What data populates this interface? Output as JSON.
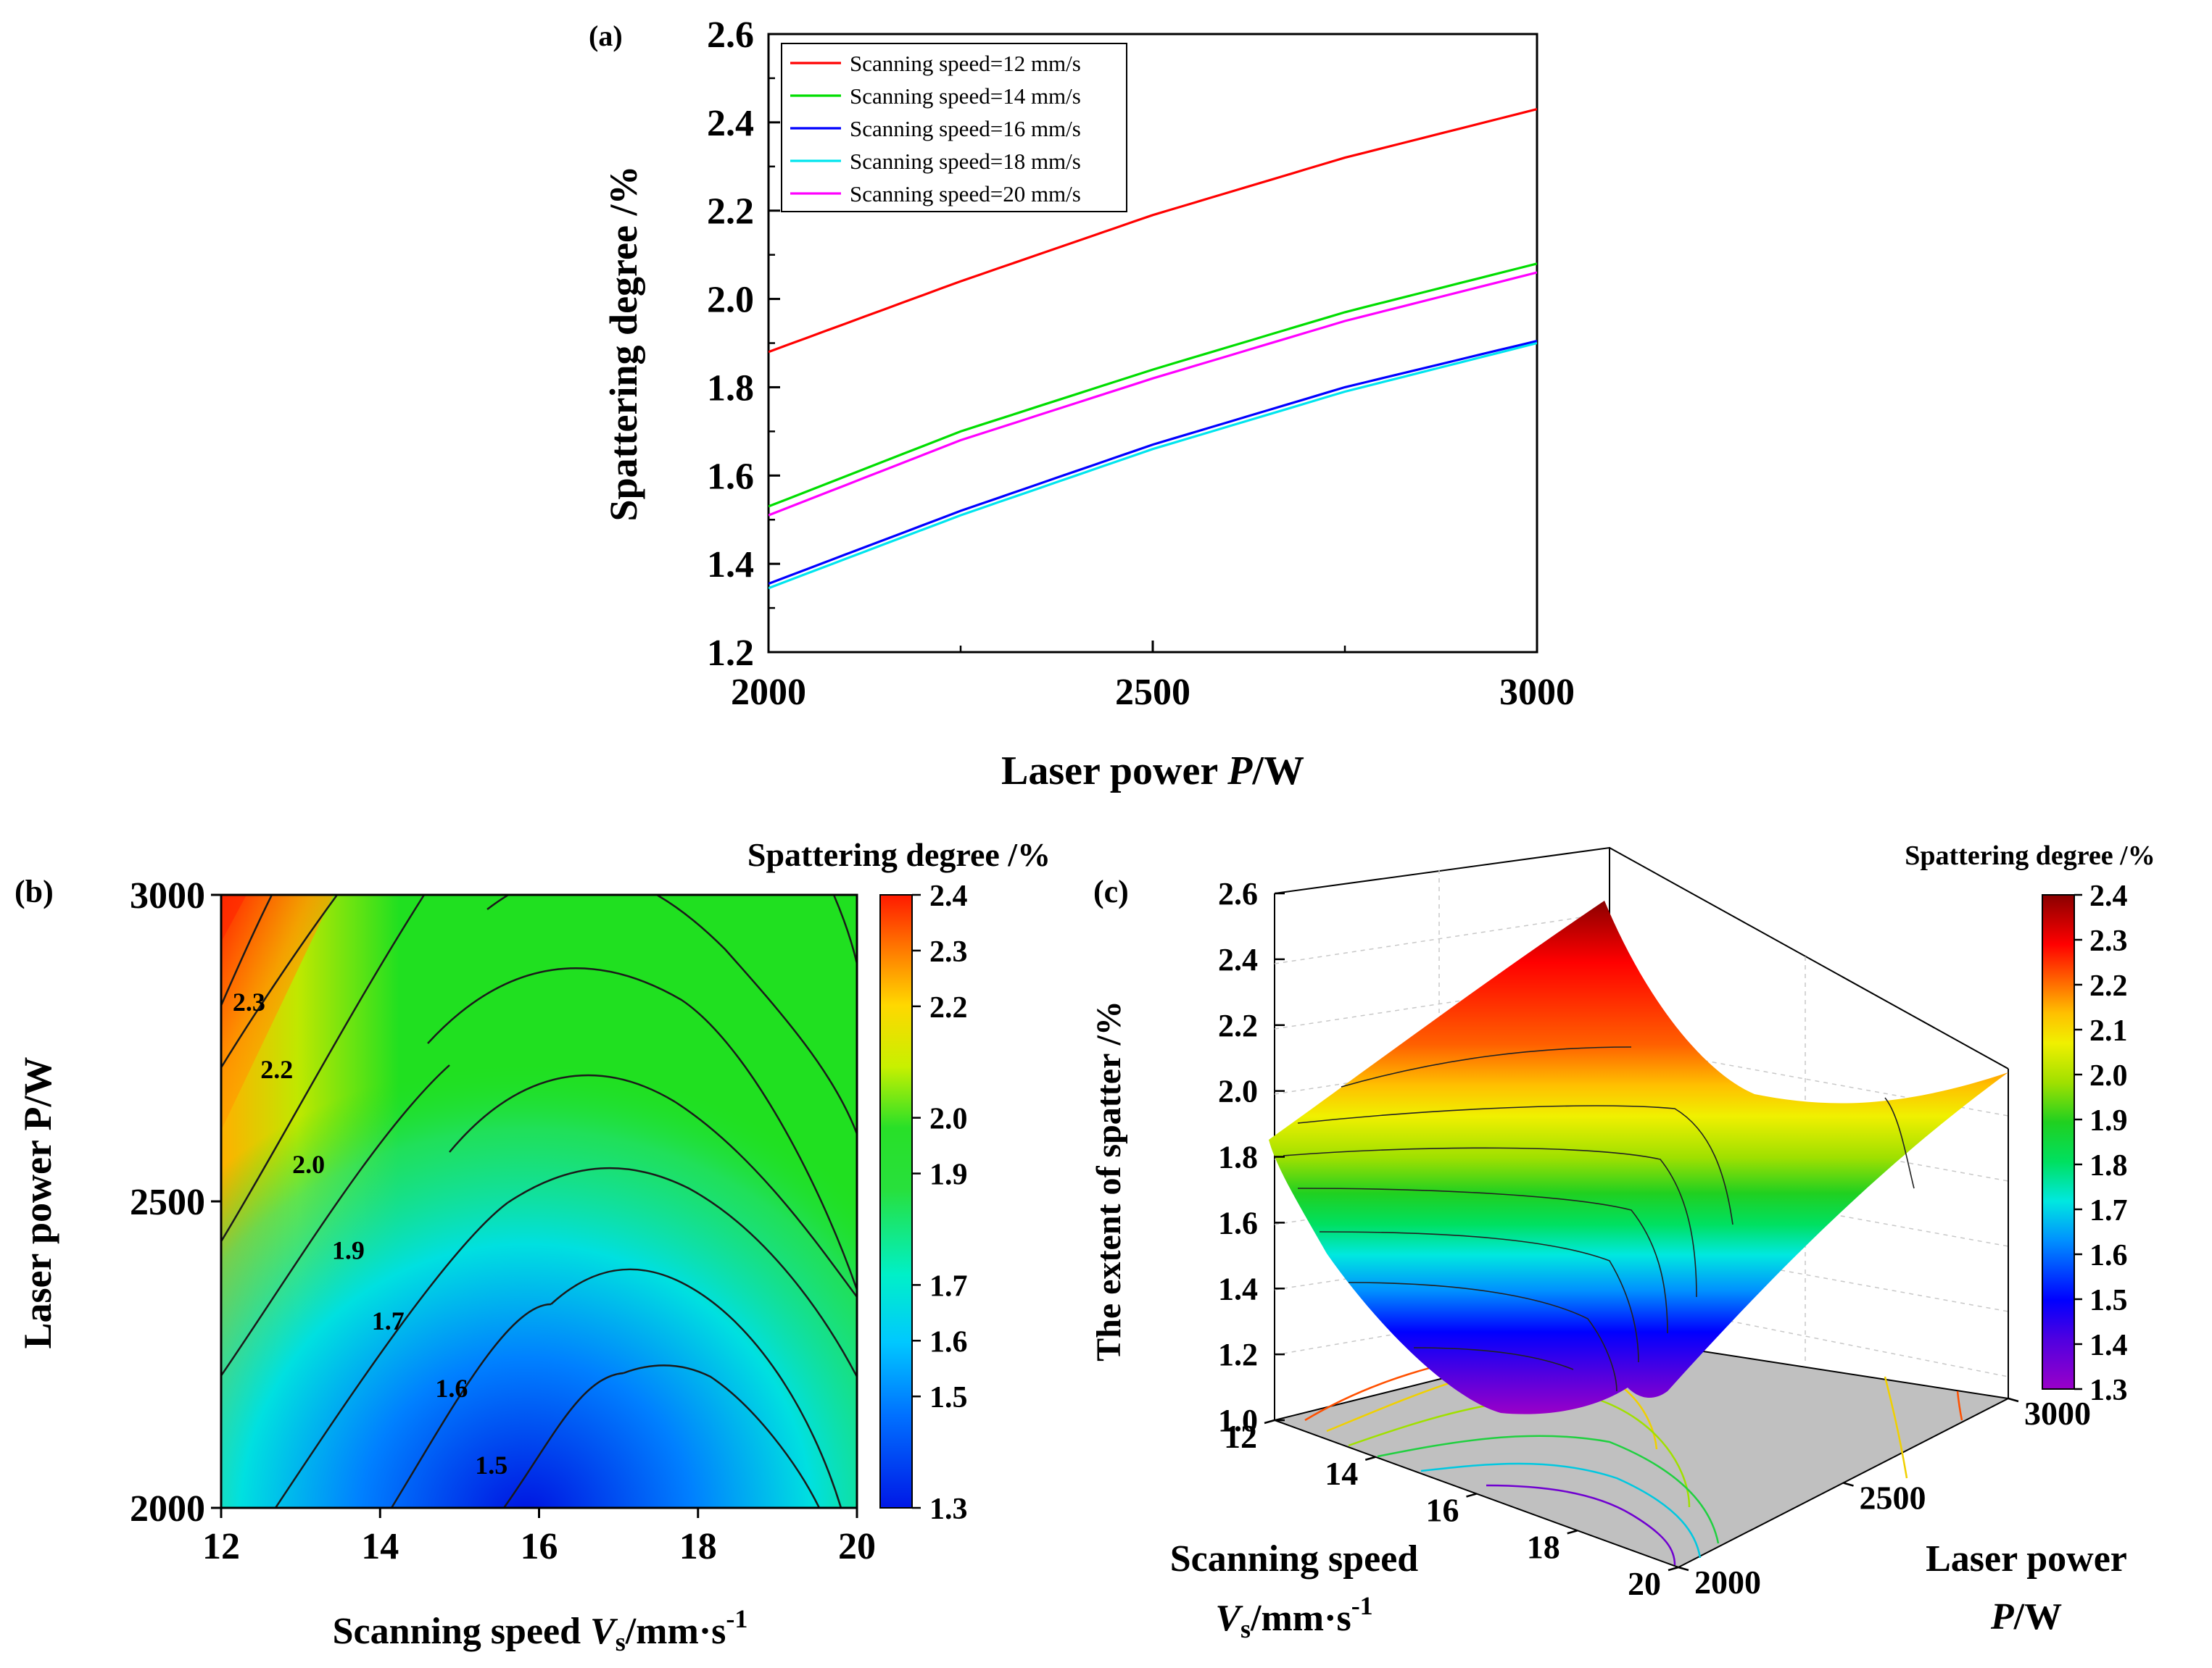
{
  "chart_data": [
    {
      "panel": "(a)",
      "type": "line",
      "xlabel_prefix": "Laser power ",
      "xlabel_var": "P",
      "xlabel_unit": "/W",
      "ylabel": "Spattering degree  /%",
      "xlim": [
        2000,
        3000
      ],
      "ylim": [
        1.2,
        2.6
      ],
      "xticks": [
        "2000",
        "2500",
        "3000"
      ],
      "yticks": [
        "1.2",
        "1.4",
        "1.6",
        "1.8",
        "2.0",
        "2.2",
        "2.4",
        "2.6"
      ],
      "x": [
        2000,
        2250,
        2500,
        2750,
        3000
      ],
      "series": [
        {
          "name": "Scanning speed=12 mm/s",
          "color": "#ff0000",
          "values": [
            1.88,
            2.04,
            2.19,
            2.32,
            2.43
          ]
        },
        {
          "name": "Scanning speed=14 mm/s",
          "color": "#00dd00",
          "values": [
            1.53,
            1.7,
            1.84,
            1.97,
            2.08
          ]
        },
        {
          "name": "Scanning speed=16 mm/s",
          "color": "#0000ff",
          "values": [
            1.355,
            1.52,
            1.67,
            1.8,
            1.905
          ]
        },
        {
          "name": "Scanning speed=18 mm/s",
          "color": "#00e5ee",
          "values": [
            1.345,
            1.51,
            1.66,
            1.79,
            1.9
          ]
        },
        {
          "name": "Scanning speed=20 mm/s",
          "color": "#ff00ff",
          "values": [
            1.51,
            1.68,
            1.82,
            1.95,
            2.06
          ]
        }
      ]
    },
    {
      "panel": "(b)",
      "type": "contour",
      "colorbar_title": "Spattering degree /%",
      "xlabel_prefix": "Scanning speed ",
      "xlabel_var": "V",
      "xlabel_sub": "s",
      "xlabel_unit": "/mm·s",
      "xlabel_sup": "-1",
      "ylabel": "Laser power P/W",
      "xlim": [
        12,
        20
      ],
      "ylim": [
        2000,
        3000
      ],
      "xticks": [
        "12",
        "14",
        "16",
        "18",
        "20"
      ],
      "yticks": [
        "2000",
        "2500",
        "3000"
      ],
      "colorbar_ticks": [
        "1.3",
        "1.5",
        "1.6",
        "1.7",
        "1.9",
        "2.0",
        "2.2",
        "2.3",
        "2.4"
      ],
      "contour_labels": [
        {
          "text": "2.3",
          "x": 12.35,
          "y": 2825
        },
        {
          "text": "2.2",
          "x": 12.7,
          "y": 2715
        },
        {
          "text": "2.0",
          "x": 13.1,
          "y": 2560
        },
        {
          "text": "1.9",
          "x": 13.6,
          "y": 2420
        },
        {
          "text": "1.7",
          "x": 14.1,
          "y": 2305
        },
        {
          "text": "1.6",
          "x": 14.9,
          "y": 2195
        },
        {
          "text": "1.5",
          "x": 15.4,
          "y": 2070
        }
      ]
    },
    {
      "panel": "(c)",
      "type": "surface3d",
      "colorbar_title": "Spattering degree  /%",
      "zlabel": "The extent of spatter /%",
      "xlabel_line1": "Scanning speed",
      "xlabel_var": "V",
      "xlabel_sub": "s",
      "xlabel_unit": "/mm·s",
      "xlabel_sup": "-1",
      "ylabel_line1": "Laser power",
      "ylabel_var": "P",
      "ylabel_unit": "/W",
      "zticks": [
        "1.0",
        "1.2",
        "1.4",
        "1.6",
        "1.8",
        "2.0",
        "2.2",
        "2.4",
        "2.6"
      ],
      "xticks": [
        "12",
        "14",
        "16",
        "18",
        "20"
      ],
      "yticks": [
        "2000",
        "2500",
        "3000"
      ],
      "colorbar_ticks": [
        "1.3",
        "1.4",
        "1.5",
        "1.6",
        "1.7",
        "1.8",
        "1.9",
        "2.0",
        "2.1",
        "2.2",
        "2.3",
        "2.4"
      ]
    }
  ]
}
